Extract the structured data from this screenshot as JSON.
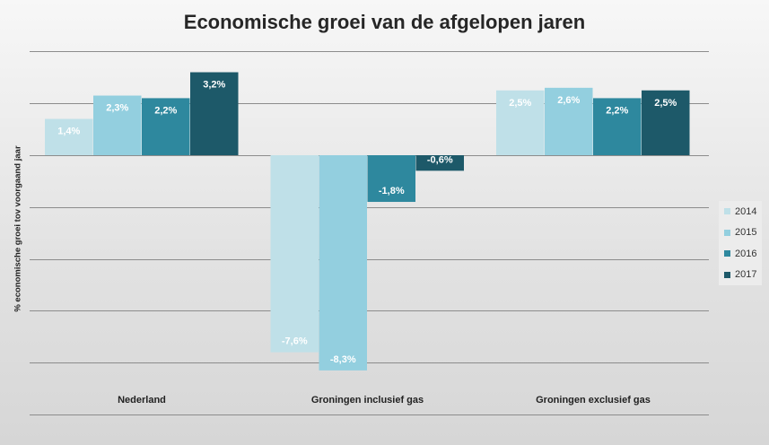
{
  "chart_data": {
    "type": "bar",
    "title": "Economische groei van de afgelopen jaren",
    "ylabel": "% economische groei tov voorgaand jaar",
    "xlabel": "",
    "categories": [
      "Nederland",
      "Groningen inclusief gas",
      "Groningen exclusief gas"
    ],
    "series": [
      {
        "name": "2014",
        "values": [
          1.4,
          -7.6,
          2.5
        ],
        "labels": [
          "1,4%",
          "-7,6%",
          "2,5%"
        ],
        "color": "#bfe0e8"
      },
      {
        "name": "2015",
        "values": [
          2.3,
          -8.3,
          2.6
        ],
        "labels": [
          "2,3%",
          "-8,3%",
          "2,6%"
        ],
        "color": "#93cfdf"
      },
      {
        "name": "2016",
        "values": [
          2.2,
          -1.8,
          2.2
        ],
        "labels": [
          "2,2%",
          "-1,8%",
          "2,2%"
        ],
        "color": "#2e889e"
      },
      {
        "name": "2017",
        "values": [
          3.2,
          -0.6,
          2.5
        ],
        "labels": [
          "3,2%",
          "-0,6%",
          "2,5%"
        ],
        "color": "#1d5969"
      }
    ],
    "ylim": [
      -10,
      4
    ],
    "gridlines": [
      -8,
      -6,
      -4,
      -2,
      0,
      2,
      4
    ],
    "grid": true,
    "legend_position": "right"
  }
}
